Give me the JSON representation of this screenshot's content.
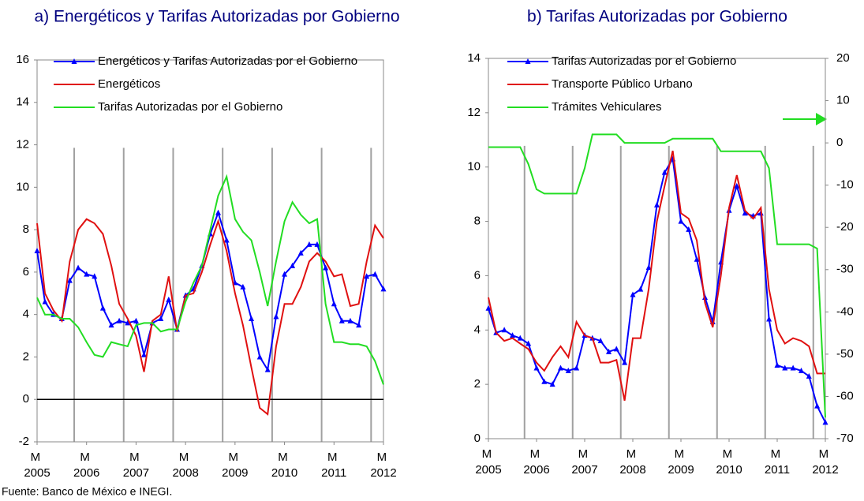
{
  "footer": "Fuente: Banco de México e INEGI.",
  "chart_data": [
    {
      "type": "line",
      "title": "a) Energéticos y Tarifas Autorizadas por Gobierno",
      "x": [
        2005.17,
        2005.33,
        2005.5,
        2005.67,
        2005.83,
        2006,
        2006.17,
        2006.33,
        2006.5,
        2006.67,
        2006.83,
        2007,
        2007.17,
        2007.33,
        2007.5,
        2007.67,
        2007.83,
        2008,
        2008.17,
        2008.33,
        2008.5,
        2008.67,
        2008.83,
        2009,
        2009.17,
        2009.33,
        2009.5,
        2009.67,
        2009.83,
        2010,
        2010.17,
        2010.33,
        2010.5,
        2010.67,
        2010.83,
        2011,
        2011.17,
        2011.33,
        2011.5,
        2011.67,
        2011.83,
        2012,
        2012.17
      ],
      "xlim": [
        2005.17,
        2012.17
      ],
      "xticks": [
        {
          "value": 2005.17,
          "label": "M 2005"
        },
        {
          "value": 2006.17,
          "label": "M 2006"
        },
        {
          "value": 2007.17,
          "label": "M 2007"
        },
        {
          "value": 2008.17,
          "label": "M 2008"
        },
        {
          "value": 2009.17,
          "label": "M 2009"
        },
        {
          "value": 2010.17,
          "label": "M 2010"
        },
        {
          "value": 2011.17,
          "label": "M 2011"
        },
        {
          "value": 2012.17,
          "label": "M 2012"
        }
      ],
      "vlines": [
        2005.92,
        2006.92,
        2007.92,
        2008.92,
        2009.92,
        2010.92,
        2011.92
      ],
      "ylim": [
        -2,
        16
      ],
      "yticks": [
        -2,
        0,
        2,
        4,
        6,
        8,
        10,
        12,
        14,
        16
      ],
      "zero_line": true,
      "series": [
        {
          "name": "Energéticos y Tarifas Autorizadas por el Gobierno",
          "color": "#0000ff",
          "marker": "triangle",
          "values": [
            7.0,
            4.6,
            4.0,
            3.8,
            5.6,
            6.2,
            5.9,
            5.8,
            4.3,
            3.5,
            3.7,
            3.6,
            3.7,
            2.1,
            3.6,
            3.8,
            4.7,
            3.3,
            4.9,
            5.2,
            6.3,
            7.8,
            8.8,
            7.5,
            5.5,
            5.3,
            3.8,
            2.0,
            1.4,
            3.9,
            5.9,
            6.3,
            6.9,
            7.3,
            7.3,
            6.2,
            4.5,
            3.7,
            3.7,
            3.5,
            5.8,
            5.9,
            5.2
          ]
        },
        {
          "name": "Energéticos",
          "color": "#e01010",
          "values": [
            8.3,
            5.0,
            4.2,
            3.7,
            6.5,
            8.0,
            8.5,
            8.3,
            7.8,
            6.3,
            4.5,
            3.8,
            3.0,
            1.3,
            3.7,
            4.0,
            5.8,
            3.2,
            4.9,
            5.0,
            6.0,
            7.3,
            8.4,
            7.0,
            5.0,
            3.5,
            1.5,
            -0.4,
            -0.7,
            2.5,
            4.5,
            4.5,
            5.3,
            6.5,
            6.9,
            6.5,
            5.8,
            5.9,
            4.4,
            4.5,
            6.5,
            8.2,
            7.6
          ]
        },
        {
          "name": "Tarifas Autorizadas por el Gobierno",
          "color": "#22dd22",
          "values": [
            4.8,
            4.0,
            4.0,
            3.8,
            3.8,
            3.4,
            2.7,
            2.1,
            2.0,
            2.7,
            2.6,
            2.5,
            3.5,
            3.6,
            3.6,
            3.2,
            3.3,
            3.3,
            4.6,
            5.5,
            6.3,
            8.0,
            9.6,
            10.5,
            8.5,
            7.9,
            7.5,
            6.0,
            4.4,
            6.5,
            8.4,
            9.3,
            8.7,
            8.3,
            8.5,
            4.5,
            2.7,
            2.7,
            2.6,
            2.6,
            2.5,
            1.8,
            0.7
          ]
        }
      ]
    },
    {
      "type": "line",
      "title": "b) Tarifas Autorizadas por Gobierno",
      "x": [
        2005.17,
        2005.33,
        2005.5,
        2005.67,
        2005.83,
        2006,
        2006.17,
        2006.33,
        2006.5,
        2006.67,
        2006.83,
        2007,
        2007.17,
        2007.33,
        2007.5,
        2007.67,
        2007.83,
        2008,
        2008.17,
        2008.33,
        2008.5,
        2008.67,
        2008.83,
        2009,
        2009.17,
        2009.33,
        2009.5,
        2009.67,
        2009.83,
        2010,
        2010.17,
        2010.33,
        2010.5,
        2010.67,
        2010.83,
        2011,
        2011.17,
        2011.33,
        2011.5,
        2011.67,
        2011.83,
        2012,
        2012.17
      ],
      "xlim": [
        2005.17,
        2012.17
      ],
      "xticks": [
        {
          "value": 2005.17,
          "label": "M 2005"
        },
        {
          "value": 2006.17,
          "label": "M 2006"
        },
        {
          "value": 2007.17,
          "label": "M 2007"
        },
        {
          "value": 2008.17,
          "label": "M 2008"
        },
        {
          "value": 2009.17,
          "label": "M 2009"
        },
        {
          "value": 2010.17,
          "label": "M 2010"
        },
        {
          "value": 2011.17,
          "label": "M 2011"
        },
        {
          "value": 2012.17,
          "label": "M 2012"
        }
      ],
      "vlines": [
        2005.92,
        2006.92,
        2007.92,
        2008.92,
        2009.92,
        2010.92,
        2011.92
      ],
      "ylim": [
        0,
        14
      ],
      "yticks": [
        0,
        2,
        4,
        6,
        8,
        10,
        12,
        14
      ],
      "y2lim": [
        -70,
        20
      ],
      "y2ticks": [
        -70,
        -60,
        -50,
        -40,
        -30,
        -20,
        -10,
        0,
        10,
        20
      ],
      "series": [
        {
          "name": "Tarifas Autorizadas por el Gobierno",
          "color": "#0000ff",
          "marker": "triangle",
          "values": [
            4.8,
            3.9,
            4.0,
            3.8,
            3.7,
            3.5,
            2.6,
            2.1,
            2.0,
            2.6,
            2.5,
            2.6,
            3.8,
            3.7,
            3.6,
            3.2,
            3.3,
            2.8,
            5.3,
            5.5,
            6.3,
            8.6,
            9.8,
            10.3,
            8.0,
            7.7,
            6.6,
            5.2,
            4.3,
            6.5,
            8.4,
            9.3,
            8.3,
            8.2,
            8.3,
            4.4,
            2.7,
            2.6,
            2.6,
            2.5,
            2.3,
            1.2,
            0.6
          ]
        },
        {
          "name": "Transporte Público Urbano",
          "color": "#e01010",
          "values": [
            5.2,
            3.9,
            3.6,
            3.7,
            3.5,
            3.3,
            2.8,
            2.5,
            3.0,
            3.4,
            3.0,
            4.3,
            3.8,
            3.7,
            2.8,
            2.8,
            2.9,
            1.4,
            3.7,
            3.7,
            5.5,
            8.0,
            9.3,
            10.6,
            8.3,
            8.1,
            7.3,
            5.0,
            4.1,
            6.0,
            8.5,
            9.7,
            8.4,
            8.1,
            8.5,
            5.5,
            4.0,
            3.5,
            3.7,
            3.6,
            3.4,
            2.4,
            2.4
          ]
        },
        {
          "name": "Trámites Vehiculares",
          "color": "#22dd22",
          "axis": "y2",
          "values": [
            -1,
            -1,
            -1,
            -1,
            -1,
            -5,
            -11,
            -12,
            -12,
            -12,
            -12,
            -12,
            -6,
            2,
            2,
            2,
            2,
            0,
            0,
            0,
            0,
            0,
            0,
            1,
            1,
            1,
            1,
            1,
            1,
            -2,
            -2,
            -2,
            -2,
            -2,
            -2,
            -6,
            -24,
            -24,
            -24,
            -24,
            -24,
            -25,
            -65
          ]
        }
      ]
    }
  ]
}
